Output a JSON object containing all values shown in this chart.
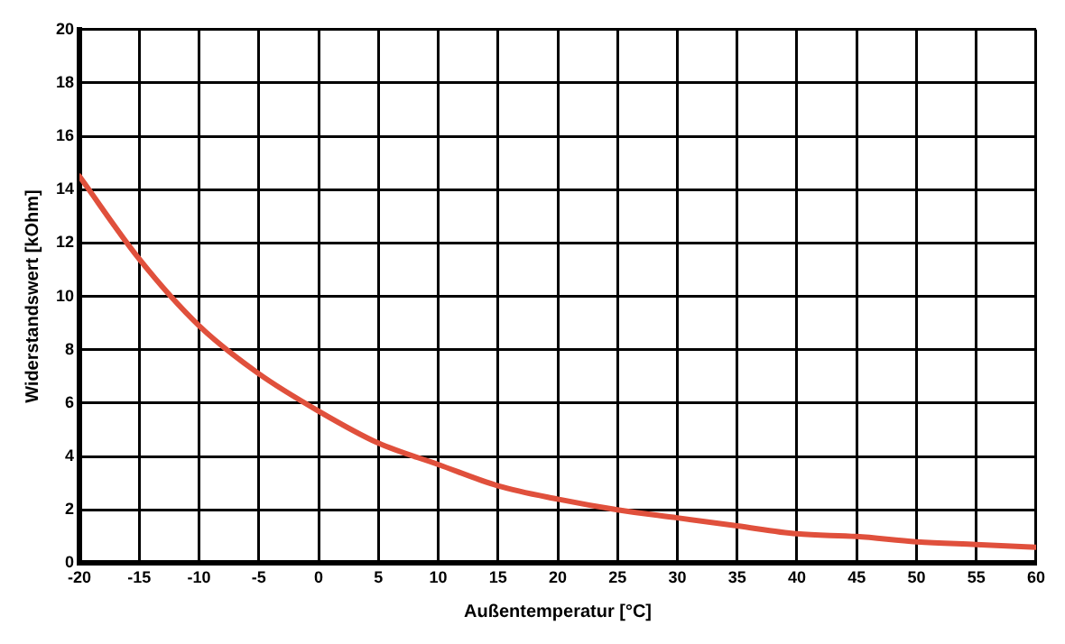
{
  "chart_data": {
    "type": "line",
    "xlabel": "Außentemperatur [°C]",
    "ylabel": "Widerstandswert [kOhm]",
    "x": [
      -20,
      -15,
      -10,
      -5,
      0,
      5,
      10,
      15,
      20,
      25,
      30,
      35,
      40,
      45,
      50,
      55,
      60
    ],
    "series": [
      {
        "color": "#e0503c",
        "values": [
          14.5,
          11.4,
          8.9,
          7.1,
          5.7,
          4.5,
          3.7,
          2.9,
          2.4,
          2.0,
          1.7,
          1.4,
          1.1,
          1.0,
          0.8,
          0.7,
          0.6
        ]
      }
    ],
    "xlim": [
      -20,
      60
    ],
    "xticks": [
      -20,
      -15,
      -10,
      -5,
      0,
      5,
      10,
      15,
      20,
      25,
      30,
      35,
      40,
      45,
      50,
      55,
      60
    ],
    "ylim": [
      0,
      20
    ],
    "yticks": [
      0,
      2,
      4,
      6,
      8,
      10,
      12,
      14,
      16,
      18,
      20
    ],
    "grid": true,
    "legend": false,
    "marker": "none",
    "line_style": "solid"
  }
}
